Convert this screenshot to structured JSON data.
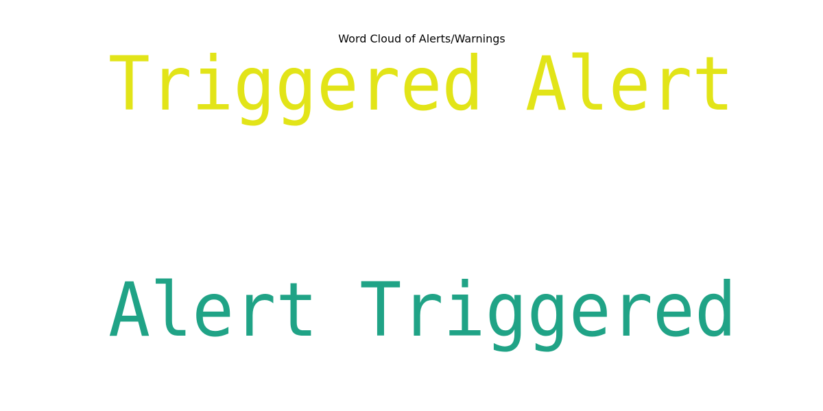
{
  "chart_data": {
    "type": "wordcloud",
    "title": "Word Cloud of Alerts/Warnings",
    "words": [
      {
        "text": "Triggered Alert",
        "color": "#e2e418"
      },
      {
        "text": "Alert Triggered",
        "color": "#20a386"
      }
    ],
    "background": "#ffffff"
  }
}
